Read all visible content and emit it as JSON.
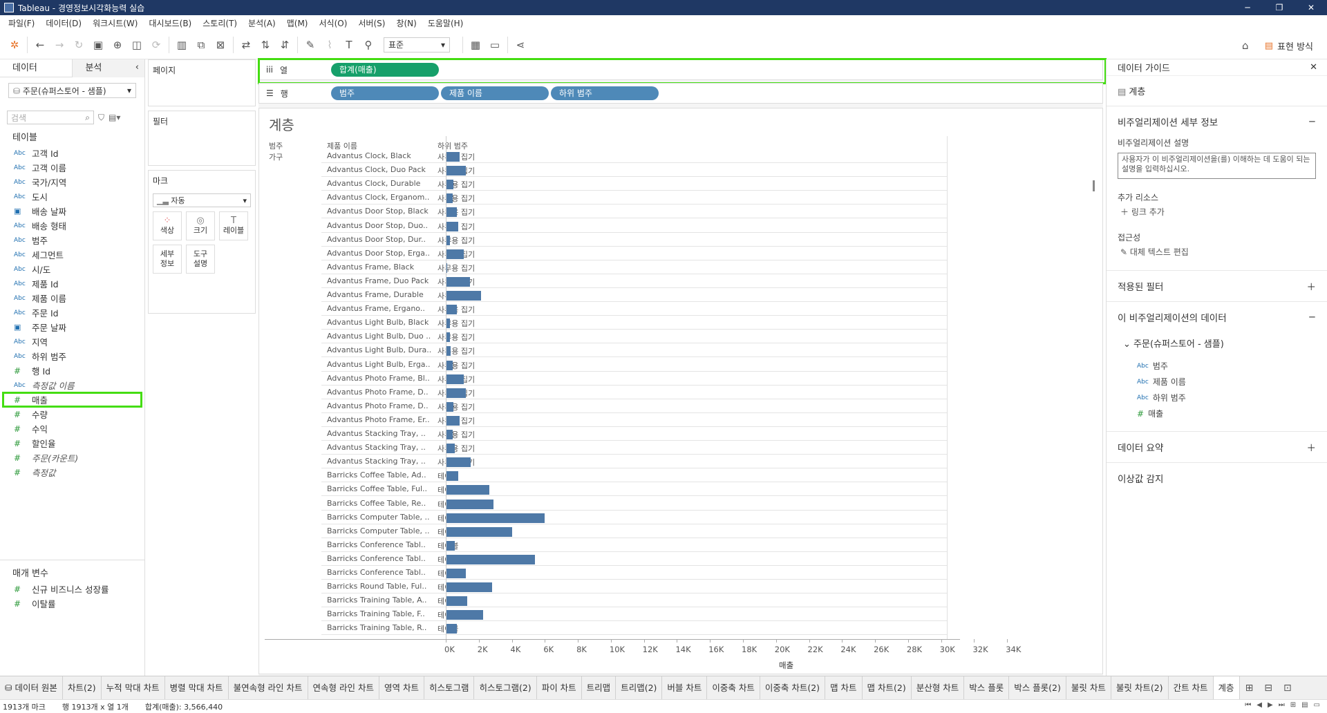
{
  "window": {
    "title": "Tableau - 경영정보시각화능력 실습"
  },
  "menu": [
    "파일(F)",
    "데이터(D)",
    "워크시트(W)",
    "대시보드(B)",
    "스토리(T)",
    "분석(A)",
    "맵(M)",
    "서식(O)",
    "서버(S)",
    "창(N)",
    "도움말(H)"
  ],
  "toolbar": {
    "fit_select": "표준",
    "show_me_label": "표현 방식"
  },
  "data_pane": {
    "tab_data": "데이터",
    "tab_analysis": "분석",
    "datasource": "주문(슈퍼스토어 - 샘플)",
    "search_placeholder": "검색",
    "tables_label": "테이블",
    "fields": [
      {
        "type": "Abc",
        "name": "고객 Id"
      },
      {
        "type": "Abc",
        "name": "고객 이름"
      },
      {
        "type": "Abc",
        "name": "국가/지역"
      },
      {
        "type": "Abc",
        "name": "도시"
      },
      {
        "type": "date",
        "name": "배송 날짜"
      },
      {
        "type": "Abc",
        "name": "배송 형태"
      },
      {
        "type": "Abc",
        "name": "범주"
      },
      {
        "type": "Abc",
        "name": "세그먼트"
      },
      {
        "type": "Abc",
        "name": "시/도"
      },
      {
        "type": "Abc",
        "name": "제품 Id"
      },
      {
        "type": "Abc",
        "name": "제품 이름"
      },
      {
        "type": "Abc",
        "name": "주문 Id"
      },
      {
        "type": "date",
        "name": "주문 날짜"
      },
      {
        "type": "Abc",
        "name": "지역"
      },
      {
        "type": "Abc",
        "name": "하위 범주"
      },
      {
        "type": "#",
        "name": "행 Id"
      },
      {
        "type": "Abc",
        "name": "측정값 이름",
        "italic": true
      },
      {
        "type": "#",
        "name": "매출",
        "highlight": true
      },
      {
        "type": "#",
        "name": "수량"
      },
      {
        "type": "#",
        "name": "수익"
      },
      {
        "type": "#",
        "name": "할인율"
      },
      {
        "type": "#",
        "name": "주문(카운트)",
        "italic": true
      },
      {
        "type": "#",
        "name": "측정값",
        "italic": true
      }
    ],
    "params_label": "매개 변수",
    "params": [
      {
        "type": "#",
        "name": "신규 비즈니스 성장률"
      },
      {
        "type": "#",
        "name": "이탈률"
      }
    ]
  },
  "shelves": {
    "pages_label": "페이지",
    "filters_label": "필터",
    "marks_label": "마크",
    "marks_type": "자동",
    "marks_buttons": [
      {
        "icon": "color-icon",
        "label": "색상"
      },
      {
        "icon": "size-icon",
        "label": "크기"
      },
      {
        "icon": "label-icon",
        "label": "레이블"
      },
      {
        "icon": "detail-icon",
        "label": "세부\n정보"
      },
      {
        "icon": "tooltip-icon",
        "label": "도구\n설명"
      }
    ],
    "columns_label": "열",
    "columns_pills": [
      "합계(매출)"
    ],
    "rows_label": "행",
    "rows_pills": [
      "범주",
      "제품 이름",
      "하위 범주"
    ]
  },
  "viz": {
    "title": "계층",
    "headers": [
      "범주",
      "제품 이름",
      "하위 범주"
    ],
    "category": "가구",
    "axis_label": "매출",
    "ticks": [
      "0K",
      "2K",
      "4K",
      "6K",
      "8K",
      "10K",
      "12K",
      "14K",
      "16K",
      "18K",
      "20K",
      "22K",
      "24K",
      "26K",
      "28K",
      "30K",
      "32K",
      "34K"
    ]
  },
  "chart_data": {
    "type": "bar",
    "orientation": "horizontal",
    "title": "계층",
    "xlabel": "매출",
    "xlim": [
      0,
      36000
    ],
    "categories": [
      "Advantus Clock, Black",
      "Advantus Clock, Duo Pack",
      "Advantus Clock, Durable",
      "Advantus Clock, Erganom..",
      "Advantus Door Stop, Black",
      "Advantus Door Stop, Duo..",
      "Advantus Door Stop, Dur..",
      "Advantus Door Stop, Erga..",
      "Advantus Frame, Black",
      "Advantus Frame, Duo Pack",
      "Advantus Frame, Durable",
      "Advantus Frame, Ergano..",
      "Advantus Light Bulb, Black",
      "Advantus Light Bulb, Duo ..",
      "Advantus Light Bulb, Dura..",
      "Advantus Light Bulb, Erga..",
      "Advantus Photo Frame, Bl..",
      "Advantus Photo Frame, D..",
      "Advantus Photo Frame, D..",
      "Advantus Photo Frame, Er..",
      "Advantus Stacking Tray, ..",
      "Advantus Stacking Tray, ..",
      "Advantus Stacking Tray, ..",
      "Barricks Coffee Table, Ad..",
      "Barricks Coffee Table, Ful..",
      "Barricks Coffee Table, Re..",
      "Barricks Computer Table, ..",
      "Barricks Computer Table, ..",
      "Barricks Conference Tabl..",
      "Barricks Conference Tabl..",
      "Barricks Conference Tabl..",
      "Barricks Round Table, Ful..",
      "Barricks Training Table, A..",
      "Barricks Training Table, F..",
      "Barricks Training Table, R.."
    ],
    "subcategories": [
      "사무용 집기",
      "사무용 집기",
      "사무용 집기",
      "사무용 집기",
      "사무용 집기",
      "사무용 집기",
      "사무용 집기",
      "사무용 집기",
      "사무용 집기",
      "사무용 집기",
      "사무용 집기",
      "사무용 집기",
      "사무용 집기",
      "사무용 집기",
      "사무용 집기",
      "사무용 집기",
      "사무용 집기",
      "사무용 집기",
      "사무용 집기",
      "사무용 집기",
      "사무용 집기",
      "사무용 집기",
      "사무용 집기",
      "테이블",
      "테이블",
      "테이블",
      "테이블",
      "테이블",
      "테이블",
      "테이블",
      "테이블",
      "테이블",
      "테이블",
      "테이블",
      "테이블"
    ],
    "values": [
      850,
      1200,
      450,
      400,
      650,
      750,
      250,
      1100,
      80,
      1450,
      2150,
      650,
      250,
      250,
      300,
      400,
      1100,
      1200,
      450,
      850,
      400,
      550,
      1500,
      750,
      2650,
      2900,
      6000,
      4000,
      550,
      5400,
      1200,
      2800,
      1300,
      2250,
      650
    ]
  },
  "guide": {
    "title": "데이터 가이드",
    "sheet": "계층",
    "viz_details": "비주얼리제이션 세부 정보",
    "desc_label": "비주얼리제이션 설명",
    "desc_placeholder": "사용자가 이 비주얼리제이션을(를) 이해하는 데 도움이 되는 설명을 입력하십시오.",
    "resources_label": "추가 리소스",
    "add_link": "링크 추가",
    "access_label": "접근성",
    "alt_text": "대체 텍스트 편집",
    "applied_filters": "적용된 필터",
    "viz_data": "이 비주얼리제이션의 데이터",
    "data_source": "주문(슈퍼스토어 - 샘플)",
    "viz_fields": [
      {
        "type": "Abc",
        "name": "범주"
      },
      {
        "type": "Abc",
        "name": "제품 이름"
      },
      {
        "type": "Abc",
        "name": "하위 범주"
      },
      {
        "type": "#",
        "name": "매출"
      }
    ],
    "data_summary": "데이터 요약",
    "outliers": "이상값 감지"
  },
  "sheet_tabs": [
    "데이터 원본",
    "차트(2)",
    "누적 막대 차트",
    "병렬 막대 차트",
    "불연속형 라인 차트",
    "연속형 라인 차트",
    "영역 차트",
    "히스토그램",
    "히스토그램(2)",
    "파이 차트",
    "트리맵",
    "트리맵(2)",
    "버블 차트",
    "이중축 차트",
    "이중축 차트(2)",
    "맵 차트",
    "맵 차트(2)",
    "분산형 차트",
    "박스 플롯",
    "박스 플롯(2)",
    "불릿 차트",
    "불릿 차트(2)",
    "간트 차트",
    "계층"
  ],
  "active_tab": "계층",
  "status": {
    "marks": "1913개 마크",
    "rows": "행 1913개 x 열 1개",
    "sum": "합계(매출): 3,566,440"
  }
}
